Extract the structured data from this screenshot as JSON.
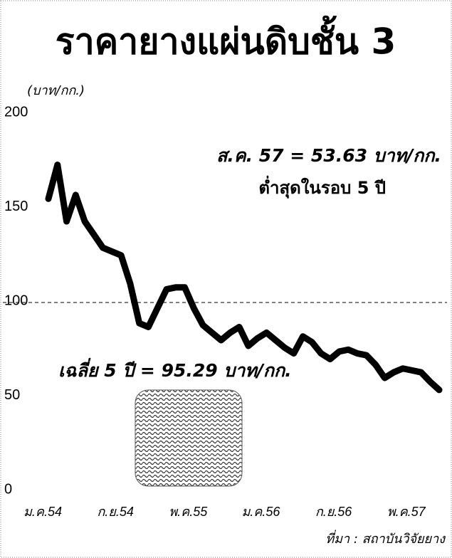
{
  "chart_data": {
    "type": "line",
    "title": "ราคายางแผ่นดิบชั้น 3",
    "y_label": "(บาท/กก.)",
    "categories": [
      "ม.ค.54",
      null,
      null,
      null,
      null,
      null,
      null,
      null,
      "ก.ย.54",
      null,
      null,
      null,
      null,
      null,
      null,
      null,
      "พ.ค.55",
      null,
      null,
      null,
      null,
      null,
      null,
      null,
      "ม.ค.56",
      null,
      null,
      null,
      null,
      null,
      null,
      null,
      "ก.ย.56",
      null,
      null,
      null,
      null,
      null,
      null,
      null,
      "พ.ค.57",
      null,
      null,
      null
    ],
    "values": [
      155,
      173,
      143,
      157,
      143,
      136,
      129,
      127,
      125,
      110,
      89,
      87,
      97,
      107,
      108,
      108,
      97,
      88,
      84,
      80,
      84,
      87,
      77,
      81,
      84,
      80,
      76,
      73,
      82,
      79,
      73,
      70,
      74,
      75,
      73,
      72,
      67,
      60,
      63,
      65,
      64,
      63,
      58,
      53.63
    ],
    "color": "#000000",
    "ylim": [
      0,
      200
    ],
    "yticks": [
      0,
      50,
      100,
      150,
      200
    ],
    "ref_line": 100,
    "annotations": [
      "ส.ค. 57 = 53.63 บาท/กก.",
      "ต่ำสุดในรอบ 5 ปี",
      "เฉลี่ย 5 ปี = 95.29 บาท/กก."
    ],
    "source": "ที่มา : สถาบันวิจัยยาง"
  }
}
